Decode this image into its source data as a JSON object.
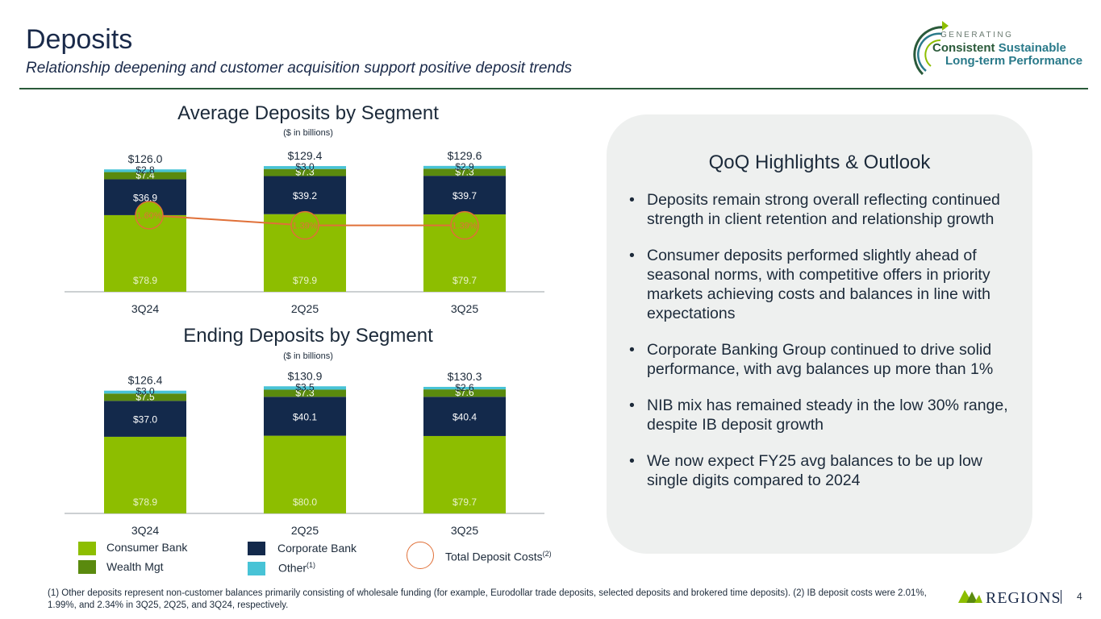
{
  "header": {
    "title": "Deposits",
    "subtitle": "Relationship deepening and customer acquisition support positive deposit trends"
  },
  "brand": {
    "line0": "GENERATING",
    "line1a": "Consistent",
    "line1b": "Sustainable",
    "line2": "Long-term Performance"
  },
  "colors": {
    "consumer": "#8dbe00",
    "corporate": "#13294b",
    "wealth": "#5a8a0e",
    "other": "#48c3d6",
    "cost_line": "#e07038"
  },
  "chart_data": [
    {
      "type": "bar",
      "stacked": true,
      "title": "Average Deposits by Segment",
      "unit": "($ in billions)",
      "categories": [
        "3Q24",
        "2Q25",
        "3Q25"
      ],
      "totals": [
        "$126.0",
        "$129.4",
        "$129.6"
      ],
      "series": [
        {
          "name": "Consumer Bank",
          "values": [
            78.9,
            79.9,
            79.7
          ],
          "labels": [
            "$78.9",
            "$79.9",
            "$79.7"
          ]
        },
        {
          "name": "Corporate Bank",
          "values": [
            36.9,
            39.2,
            39.7
          ],
          "labels": [
            "$36.9",
            "$39.2",
            "$39.7"
          ]
        },
        {
          "name": "Wealth Mgt",
          "values": [
            7.4,
            7.3,
            7.3
          ],
          "labels": [
            "$7.4",
            "$7.3",
            "$7.3"
          ]
        },
        {
          "name": "Other",
          "values": [
            2.8,
            3.0,
            2.9
          ],
          "labels": [
            "$2.8",
            "$3.0",
            "$2.9"
          ]
        }
      ],
      "line": {
        "name": "Total Deposit Costs",
        "values": [
          1.6,
          1.39,
          1.39
        ],
        "labels": [
          "1.60%",
          "1.39%",
          "1.39%"
        ]
      }
    },
    {
      "type": "bar",
      "stacked": true,
      "title": "Ending Deposits by Segment",
      "unit": "($ in billions)",
      "categories": [
        "3Q24",
        "2Q25",
        "3Q25"
      ],
      "totals": [
        "$126.4",
        "$130.9",
        "$130.3"
      ],
      "series": [
        {
          "name": "Consumer Bank",
          "values": [
            78.9,
            80.0,
            79.7
          ],
          "labels": [
            "$78.9",
            "$80.0",
            "$79.7"
          ]
        },
        {
          "name": "Corporate Bank",
          "values": [
            37.0,
            40.1,
            40.4
          ],
          "labels": [
            "$37.0",
            "$40.1",
            "$40.4"
          ]
        },
        {
          "name": "Wealth Mgt",
          "values": [
            7.5,
            7.3,
            7.6
          ],
          "labels": [
            "$7.5",
            "$7.3",
            "$7.6"
          ]
        },
        {
          "name": "Other",
          "values": [
            3.0,
            3.5,
            2.6
          ],
          "labels": [
            "$3.0",
            "$3.5",
            "$2.6"
          ]
        }
      ]
    }
  ],
  "legend": {
    "consumer": "Consumer Bank",
    "corporate": "Corporate Bank",
    "wealth": "Wealth Mgt",
    "other": "Other",
    "other_sup": "(1)",
    "cost": "Total Deposit Costs",
    "cost_sup": "(2)"
  },
  "panel": {
    "title": "QoQ Highlights & Outlook",
    "bullets": [
      "Deposits remain strong overall reflecting continued strength in client retention and relationship growth",
      "Consumer deposits performed slightly ahead of seasonal norms, with competitive offers in priority markets achieving costs and balances in line with expectations",
      "Corporate Banking Group continued to drive solid performance, with avg balances up more than 1%",
      "NIB mix has remained steady in the low 30% range, despite IB deposit growth",
      "We now expect FY25 avg balances to be up low single digits compared to 2024"
    ]
  },
  "footnote": "(1) Other deposits represent non-customer balances primarily consisting of wholesale funding (for example, Eurodollar trade deposits, selected deposits and brokered time deposits).  (2) IB deposit costs were 2.01%, 1.99%, and 2.34% in 3Q25, 2Q25, and 3Q24, respectively.",
  "footer": {
    "logo_text": "REGIONS",
    "page_number": "4"
  }
}
